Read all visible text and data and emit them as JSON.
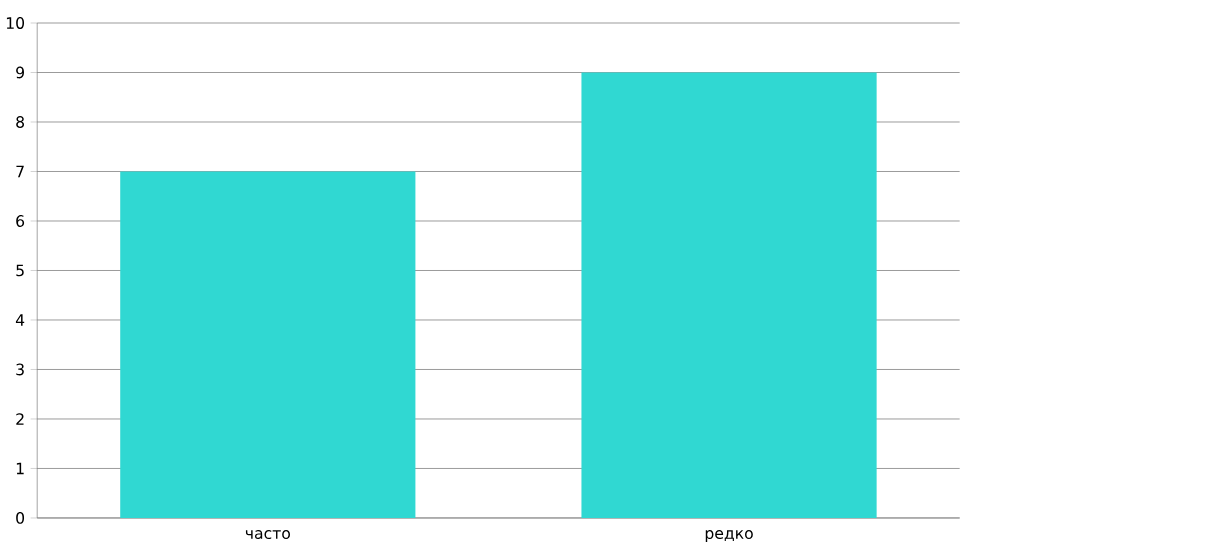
{
  "chart_data": {
    "type": "bar",
    "categories": [
      "часто",
      "редко"
    ],
    "values": [
      7,
      9
    ],
    "color": "#30d8d2",
    "ylim": [
      0,
      10
    ],
    "yticks": [
      0,
      1,
      2,
      3,
      4,
      5,
      6,
      7,
      8,
      9,
      10
    ],
    "grid": "y"
  }
}
